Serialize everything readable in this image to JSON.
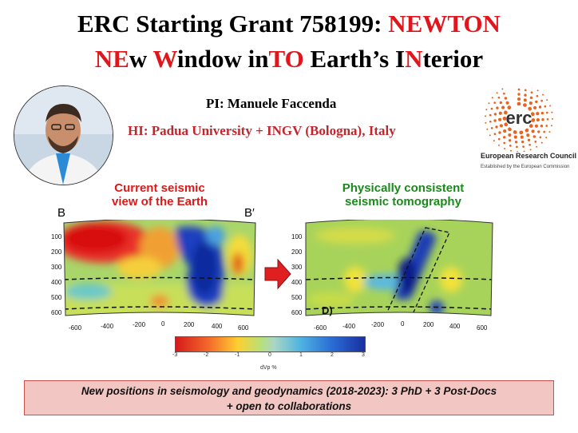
{
  "title": {
    "line1_plain": "ERC Starting Grant 758199: ",
    "line1_red": "NEWTON",
    "line2": [
      {
        "t": "NE",
        "red": true
      },
      {
        "t": "w ",
        "red": false
      },
      {
        "t": "W",
        "red": true
      },
      {
        "t": "indow in",
        "red": false
      },
      {
        "t": "TO",
        "red": true
      },
      {
        "t": " Earth’s I",
        "red": false
      },
      {
        "t": "N",
        "red": true
      },
      {
        "t": "terior",
        "red": false
      }
    ]
  },
  "pi": "PI: Manuele Faccenda",
  "hi": "HI: Padua University + INGV (Bologna), Italy",
  "logo": {
    "text": "erc",
    "name": "European Research Council",
    "sub": "Established by the European Commission",
    "color": "#e8641e"
  },
  "left_panel": {
    "label_line1": "Current seismic",
    "label_line2": "view of the Earth",
    "letter_left": "B",
    "letter_right": "B′",
    "y_ticks": [
      "100",
      "200",
      "300",
      "400",
      "500",
      "600"
    ],
    "x_ticks": [
      "-600",
      "-400",
      "-200",
      "0",
      "200",
      "400",
      "600"
    ]
  },
  "right_panel": {
    "label_line1": "Physically consistent",
    "label_line2": "seismic tomography",
    "panel_tag": "D)",
    "y_ticks": [
      "100",
      "200",
      "300",
      "400",
      "500",
      "600"
    ],
    "x_ticks": [
      "-600",
      "-400",
      "-200",
      "0",
      "200",
      "400",
      "600"
    ]
  },
  "colorbar": {
    "ticks": [
      "-3",
      "-2",
      "-1",
      "0",
      "1",
      "2",
      "3"
    ],
    "label": "dVp %"
  },
  "footer": {
    "line1": "New positions in seismology and geodynamics (2018-2023): 3 PhD + 3 Post-Docs",
    "line2": "+ open to collaborations"
  }
}
